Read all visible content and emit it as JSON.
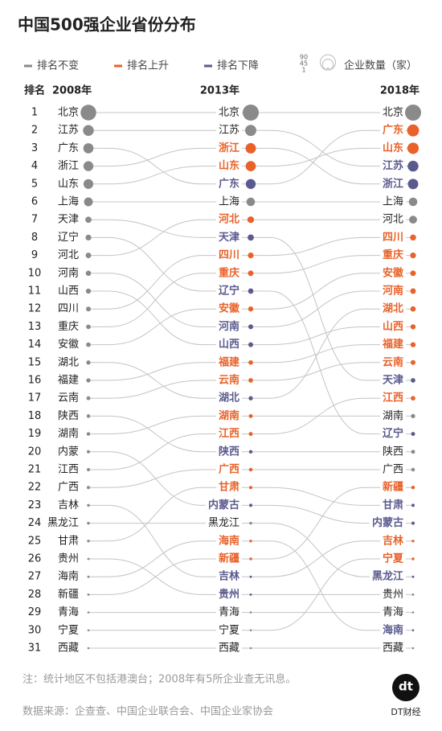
{
  "chart_data": {
    "type": "bump",
    "title": "中国500强企业省份分布",
    "legend": [
      {
        "label": "排名不变",
        "color": "#8a8a8a"
      },
      {
        "label": "排名上升",
        "color": "#e8622a"
      },
      {
        "label": "排名下降",
        "color": "#5b5a8e"
      }
    ],
    "size_legend": {
      "values": [
        90,
        45,
        1
      ],
      "label": "企业数量（家）"
    },
    "rank_header": "排名",
    "years": [
      "2008年",
      "2013年",
      "2018年"
    ],
    "rank_labels": [
      1,
      2,
      3,
      4,
      5,
      6,
      7,
      8,
      9,
      10,
      11,
      12,
      13,
      14,
      15,
      16,
      17,
      18,
      19,
      20,
      21,
      22,
      23,
      24,
      25,
      26,
      27,
      28,
      29,
      30,
      31
    ],
    "series": [
      {
        "labels": [
          "北京",
          "北京",
          "北京"
        ],
        "ranks": [
          1,
          1,
          1
        ],
        "sizes": [
          95,
          100,
          100
        ]
      },
      {
        "labels": [
          "江苏",
          "江苏",
          "江苏"
        ],
        "ranks": [
          2,
          2,
          4
        ],
        "sizes": [
          45,
          48,
          45
        ]
      },
      {
        "labels": [
          "广东",
          "广东",
          "广东"
        ],
        "ranks": [
          3,
          5,
          2
        ],
        "sizes": [
          40,
          38,
          55
        ]
      },
      {
        "labels": [
          "浙江",
          "浙江",
          "浙江"
        ],
        "ranks": [
          4,
          3,
          5
        ],
        "sizes": [
          38,
          42,
          42
        ]
      },
      {
        "labels": [
          "山东",
          "山东",
          "山东"
        ],
        "ranks": [
          5,
          4,
          3
        ],
        "sizes": [
          37,
          40,
          50
        ]
      },
      {
        "labels": [
          "上海",
          "上海",
          "上海"
        ],
        "ranks": [
          6,
          6,
          6
        ],
        "sizes": [
          30,
          28,
          28
        ]
      },
      {
        "labels": [
          "天津",
          "天津",
          "天津"
        ],
        "ranks": [
          7,
          8,
          16
        ],
        "sizes": [
          15,
          15,
          8
        ]
      },
      {
        "labels": [
          "辽宁",
          "辽宁",
          "辽宁"
        ],
        "ranks": [
          8,
          11,
          19
        ],
        "sizes": [
          13,
          11,
          6
        ]
      },
      {
        "labels": [
          "河北",
          "河北",
          "河北"
        ],
        "ranks": [
          9,
          7,
          7
        ],
        "sizes": [
          12,
          17,
          24
        ]
      },
      {
        "labels": [
          "河南",
          "河南",
          "河南"
        ],
        "ranks": [
          10,
          13,
          11
        ],
        "sizes": [
          11,
          9,
          12
        ]
      },
      {
        "labels": [
          "山西",
          "山西",
          "山西"
        ],
        "ranks": [
          11,
          14,
          13
        ],
        "sizes": [
          10,
          9,
          10
        ]
      },
      {
        "labels": [
          "四川",
          "四川",
          "四川"
        ],
        "ranks": [
          12,
          9,
          8
        ],
        "sizes": [
          9,
          13,
          14
        ]
      },
      {
        "labels": [
          "重庆",
          "重庆",
          "重庆"
        ],
        "ranks": [
          13,
          10,
          9
        ],
        "sizes": [
          8,
          12,
          13
        ]
      },
      {
        "labels": [
          "安徽",
          "安徽",
          "安徽"
        ],
        "ranks": [
          14,
          12,
          10
        ],
        "sizes": [
          8,
          10,
          12
        ]
      },
      {
        "labels": [
          "湖北",
          "湖北",
          "湖北"
        ],
        "ranks": [
          15,
          17,
          12
        ],
        "sizes": [
          7,
          7,
          11
        ]
      },
      {
        "labels": [
          "福建",
          "福建",
          "福建"
        ],
        "ranks": [
          16,
          15,
          14
        ],
        "sizes": [
          7,
          8,
          10
        ]
      },
      {
        "labels": [
          "云南",
          "云南",
          "云南"
        ],
        "ranks": [
          17,
          16,
          15
        ],
        "sizes": [
          6,
          8,
          9
        ]
      },
      {
        "labels": [
          "陕西",
          "陕西",
          "陕西"
        ],
        "ranks": [
          18,
          20,
          20
        ],
        "sizes": [
          5,
          5,
          6
        ]
      },
      {
        "labels": [
          "湖南",
          "湖南",
          "湖南"
        ],
        "ranks": [
          19,
          18,
          18
        ],
        "sizes": [
          5,
          6,
          7
        ]
      },
      {
        "labels": [
          "内蒙",
          "内蒙古",
          "内蒙古"
        ],
        "ranks": [
          20,
          23,
          24
        ],
        "sizes": [
          4,
          4,
          4
        ]
      },
      {
        "labels": [
          "江西",
          "江西",
          "江西"
        ],
        "ranks": [
          21,
          19,
          17
        ],
        "sizes": [
          4,
          6,
          8
        ]
      },
      {
        "labels": [
          "广西",
          "广西",
          "广西"
        ],
        "ranks": [
          22,
          21,
          21
        ],
        "sizes": [
          4,
          5,
          5
        ]
      },
      {
        "labels": [
          "吉林",
          "吉林",
          "吉林"
        ],
        "ranks": [
          23,
          27,
          25
        ],
        "sizes": [
          3,
          2,
          3
        ]
      },
      {
        "labels": [
          "黑龙江",
          "黑龙江",
          "黑龙江"
        ],
        "ranks": [
          24,
          24,
          27
        ],
        "sizes": [
          3,
          3,
          2
        ]
      },
      {
        "labels": [
          "甘肃",
          "甘肃",
          "甘肃"
        ],
        "ranks": [
          25,
          22,
          23
        ],
        "sizes": [
          3,
          4,
          4
        ]
      },
      {
        "labels": [
          "贵州",
          "贵州",
          "贵州"
        ],
        "ranks": [
          26,
          28,
          28
        ],
        "sizes": [
          2,
          2,
          2
        ]
      },
      {
        "labels": [
          "海南",
          "海南",
          "海南"
        ],
        "ranks": [
          27,
          25,
          30
        ],
        "sizes": [
          2,
          3,
          1
        ]
      },
      {
        "labels": [
          "新疆",
          "新疆",
          "新疆"
        ],
        "ranks": [
          28,
          26,
          22
        ],
        "sizes": [
          2,
          3,
          5
        ]
      },
      {
        "labels": [
          "青海",
          "青海",
          "青海"
        ],
        "ranks": [
          29,
          29,
          29
        ],
        "sizes": [
          1,
          1,
          1
        ]
      },
      {
        "labels": [
          "宁夏",
          "宁夏",
          "宁夏"
        ],
        "ranks": [
          30,
          30,
          26
        ],
        "sizes": [
          1,
          1,
          3
        ]
      },
      {
        "labels": [
          "西藏",
          "西藏",
          "西藏"
        ],
        "ranks": [
          31,
          31,
          31
        ],
        "sizes": [
          1,
          1,
          1
        ]
      }
    ],
    "note": "注：统计地区不包括港澳台；2008年有5所企业查无讯息。",
    "source": "数据来源：企查查、中国企业联合会、中国企业家协会",
    "logo": {
      "mark": "dt",
      "name": "DT财经"
    }
  }
}
